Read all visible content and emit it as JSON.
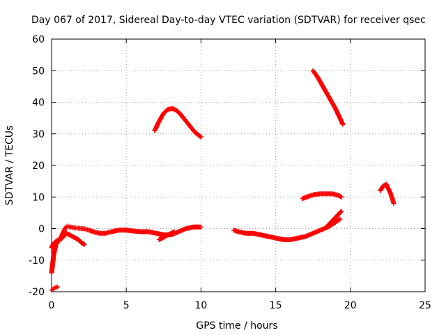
{
  "chart_data": {
    "type": "scatter",
    "title": "Day 067 of 2017, Sidereal Day-to-day VTEC variation (SDTVAR) for receiver qsec",
    "xlabel": "GPS time / hours",
    "ylabel": "SDTVAR / TECUs",
    "xlim": [
      0,
      25
    ],
    "ylim": [
      -20,
      60
    ],
    "xticks": [
      "0",
      "5",
      "10",
      "15",
      "20",
      "25"
    ],
    "yticks": [
      "-20",
      "-10",
      "0",
      "10",
      "20",
      "30",
      "40",
      "50",
      "60"
    ],
    "grid": true,
    "legend": "none",
    "marker": "plus",
    "color": "#ff0000",
    "series": [
      {
        "x": [
          0.0,
          0.05,
          0.1,
          0.15,
          0.2,
          0.25,
          0.3,
          0.4,
          0.5,
          0.6,
          0.7,
          0.8,
          0.9,
          1.0,
          1.1,
          1.2,
          1.3,
          1.5,
          1.7,
          1.9,
          2.1,
          2.3,
          2.5,
          2.8,
          3.2,
          3.6,
          4.0,
          4.5,
          5.0
        ],
        "y": [
          -14,
          -12,
          -10,
          -8,
          -7,
          -6,
          -5,
          -4,
          -4,
          -3,
          -2,
          -1,
          0,
          0.5,
          0.8,
          0.5,
          0.5,
          0.2,
          0.2,
          0,
          0,
          -0.2,
          -0.5,
          -1,
          -1.5,
          -1.5,
          -1,
          -0.5,
          -0.5
        ]
      },
      {
        "x": [
          0.0,
          0.1,
          0.2,
          0.3,
          0.5,
          0.7,
          0.9,
          1.0,
          1.2,
          1.4,
          1.6,
          1.8,
          2.0,
          2.2
        ],
        "y": [
          -6,
          -5,
          -4.5,
          -4,
          -3.5,
          -3,
          -2,
          -1.5,
          -2,
          -2.5,
          -3,
          -3.5,
          -4.5,
          -5
        ]
      },
      {
        "x": [
          0.0,
          0.1,
          0.2,
          0.3,
          0.4
        ],
        "y": [
          -19.5,
          -19.2,
          -18.8,
          -18.5,
          -18.5
        ]
      },
      {
        "x": [
          5.0,
          5.5,
          6.0,
          6.5,
          7.0,
          7.5,
          8.0,
          8.5,
          9.0,
          9.5,
          10.0
        ],
        "y": [
          -0.5,
          -0.8,
          -1,
          -1,
          -1.5,
          -2,
          -2,
          -1,
          0,
          0.5,
          0.5
        ]
      },
      {
        "x": [
          7.2,
          7.4,
          7.6,
          7.8,
          8.0,
          8.2
        ],
        "y": [
          -3.5,
          -3,
          -2.5,
          -2,
          -1.5,
          -1
        ]
      },
      {
        "x": [
          6.9,
          7.2,
          7.5,
          7.8,
          8.1,
          8.4,
          8.7,
          9.0,
          9.3,
          9.6,
          10.0
        ],
        "y": [
          31,
          34,
          36.5,
          37.8,
          38,
          37.3,
          35.8,
          34,
          32.2,
          30.5,
          29
        ]
      },
      {
        "x": [
          12.2,
          12.5,
          13.0,
          13.5,
          14.0,
          14.5,
          15.0,
          15.5,
          16.0,
          16.5,
          17.0,
          17.5,
          18.0,
          18.5,
          19.0,
          19.3
        ],
        "y": [
          -0.5,
          -1,
          -1.5,
          -1.5,
          -2,
          -2.5,
          -3,
          -3.5,
          -3.5,
          -3,
          -2.5,
          -1.5,
          -0.5,
          0.5,
          2,
          3
        ]
      },
      {
        "x": [
          18.5,
          18.8,
          19.1,
          19.4
        ],
        "y": [
          1,
          2.5,
          4,
          5.5
        ]
      },
      {
        "x": [
          16.8,
          17.2,
          17.6,
          18.0,
          18.4,
          18.8,
          19.2,
          19.4
        ],
        "y": [
          9.5,
          10.2,
          10.8,
          11,
          11,
          11,
          10.5,
          10
        ]
      },
      {
        "x": [
          17.5,
          17.8,
          18.1,
          18.4,
          18.7,
          19.0,
          19.3,
          19.5
        ],
        "y": [
          50,
          48,
          45.5,
          43,
          40.5,
          38,
          35,
          33
        ]
      },
      {
        "x": [
          22.0,
          22.2,
          22.4,
          22.5,
          22.6,
          22.7,
          22.8,
          22.9
        ],
        "y": [
          12,
          13.5,
          14,
          13,
          12,
          11,
          9.5,
          8
        ]
      }
    ]
  }
}
